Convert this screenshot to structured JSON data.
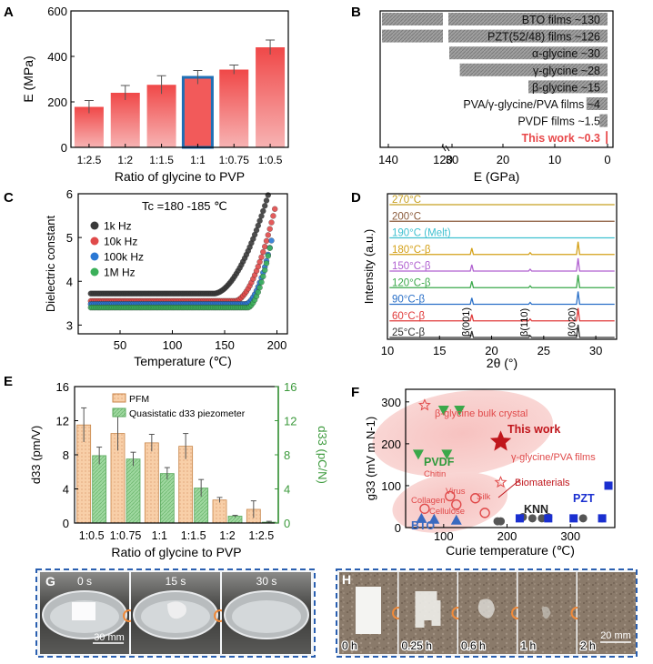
{
  "colors": {
    "bar_red": "#f25a5a",
    "bar_red_light": "#f7a8a8",
    "highlight_blue": "#1f6fb5",
    "gray_bar": "#9b9b9b",
    "this_work_red": "#e8484a",
    "pfm_fill": "#f6c9a6",
    "quasi_fill": "#9fd6a0",
    "axis_green": "#3c9a3c",
    "frame_blue": "#1f4e9a"
  },
  "chart_data": [
    {
      "panel": "A",
      "type": "bar",
      "categories": [
        "1:2.5",
        "1:2",
        "1:1.5",
        "1:1",
        "1:0.75",
        "1:0.5"
      ],
      "values": [
        178,
        240,
        275,
        308,
        342,
        440
      ],
      "errors": [
        28,
        32,
        40,
        30,
        20,
        32
      ],
      "highlight_index": 3,
      "xlabel": "Ratio of glycine to PVP",
      "ylabel": "E (MPa)",
      "ylim": [
        0,
        600
      ],
      "yticks": [
        0,
        200,
        400,
        600
      ]
    },
    {
      "panel": "B",
      "type": "bar",
      "orientation": "horizontal-reversed",
      "labels": [
        "BTO films ~130",
        "PZT(52/48) films ~126",
        "α-glycine ~30",
        "γ-glycine ~28",
        "β-glycine ~15",
        "PVA/γ-glycine/PVA films ~4",
        "PVDF films ~1.5",
        "This work ~0.3"
      ],
      "values": [
        130,
        126,
        30,
        28,
        15,
        4,
        1.5,
        0.3
      ],
      "xlabel": "E (GPa)",
      "xlim": [
        140,
        0
      ],
      "xticks": [
        "140",
        "120",
        "30",
        "20",
        "10",
        "0"
      ],
      "axis_break": "between 120 and 30"
    },
    {
      "panel": "C",
      "type": "scatter",
      "annotation": "Tc =180 -185 ℃",
      "xlabel": "Temperature (℃)",
      "ylabel": "Dielectric constant",
      "xlim": [
        10,
        210
      ],
      "ylim": [
        2.8,
        6.0
      ],
      "xticks": [
        50,
        100,
        150,
        200
      ],
      "yticks": [
        3,
        4,
        5,
        6
      ],
      "series": [
        {
          "name": "1k Hz",
          "color": "#3a3a3a",
          "base": 3.72,
          "knee": 140,
          "end_x": 192,
          "end_y": 6.0
        },
        {
          "name": "10k Hz",
          "color": "#e04a4a",
          "base": 3.55,
          "knee": 160,
          "end_x": 198,
          "end_y": 5.65
        },
        {
          "name": "100k Hz",
          "color": "#2b78d4",
          "base": 3.48,
          "knee": 170,
          "end_x": 195,
          "end_y": 4.95
        },
        {
          "name": "1M Hz",
          "color": "#3bb05a",
          "base": 3.4,
          "knee": 172,
          "end_x": 194,
          "end_y": 4.85
        }
      ]
    },
    {
      "panel": "D",
      "type": "line",
      "xlabel": "2θ (°)",
      "ylabel": "Intensity (a.u.)",
      "xlim": [
        10,
        32
      ],
      "xticks": [
        10,
        15,
        20,
        25,
        30
      ],
      "peak_labels": [
        {
          "text": "β(001)",
          "x": 18.1
        },
        {
          "text": "β(110)",
          "x": 23.7
        },
        {
          "text": "β(020)",
          "x": 28.3
        }
      ],
      "series": [
        {
          "name": "270°C",
          "color": "#c8a020",
          "peaks": false
        },
        {
          "name": "200°C",
          "color": "#8a5a3a",
          "peaks": false
        },
        {
          "name": "190°C (Melt)",
          "color": "#3ec0d0",
          "peaks": false
        },
        {
          "name": "180°C-β",
          "color": "#d4a017",
          "peaks": true
        },
        {
          "name": "150°C-β",
          "color": "#b060d0",
          "peaks": true
        },
        {
          "name": "120°C-β",
          "color": "#3aa84a",
          "peaks": true
        },
        {
          "name": "90°C-β",
          "color": "#2a70c8",
          "peaks": true
        },
        {
          "name": "60°C-β",
          "color": "#e03a3a",
          "peaks": true
        },
        {
          "name": "25°C-β",
          "color": "#333333",
          "peaks": true
        }
      ]
    },
    {
      "panel": "E",
      "type": "bar",
      "categories": [
        "1:0.5",
        "1:0.75",
        "1:1",
        "1:1.5",
        "1:2",
        "1:2.5"
      ],
      "series": [
        {
          "name": "PFM",
          "axis": "left",
          "values": [
            11.5,
            10.5,
            9.4,
            9.0,
            2.7,
            1.6
          ],
          "errors": [
            2.0,
            2.0,
            1.0,
            1.5,
            0.3,
            1.0
          ]
        },
        {
          "name": "Quasistatic d33 piezometer",
          "axis": "right",
          "values": [
            7.9,
            7.5,
            5.8,
            4.1,
            0.8,
            0.1
          ],
          "errors": [
            1.0,
            0.8,
            0.7,
            1.0,
            0.1,
            0.1
          ]
        }
      ],
      "xlabel": "Ratio of glycine to PVP",
      "ylabel_left": "d33 (pm/V)",
      "ylabel_right": "d33 (pC/N)",
      "ylim": [
        0,
        16
      ],
      "yticks": [
        0,
        4,
        8,
        12,
        16
      ]
    },
    {
      "panel": "F",
      "type": "scatter",
      "xlabel": "Curie temperature (℃)",
      "ylabel": "g33 (mV m N-1)",
      "xlim": [
        40,
        370
      ],
      "ylim": [
        0,
        330
      ],
      "xticks": [
        100,
        200,
        300
      ],
      "yticks": [
        0,
        100,
        200,
        300
      ],
      "groups": [
        {
          "name": "β-glycine bulk crystal",
          "marker": "star-open",
          "color": "#e04a4a",
          "points": [
            [
              70,
              292
            ],
            [
              190,
              108
            ]
          ]
        },
        {
          "name": "PVDF",
          "marker": "triangle-down",
          "color": "#3aa84a",
          "points": [
            [
              100,
              280
            ],
            [
              125,
              280
            ],
            [
              60,
              175
            ],
            [
              105,
              175
            ]
          ]
        },
        {
          "name": "This work",
          "marker": "star",
          "color": "#c0161c",
          "points": [
            [
              190,
              205
            ]
          ]
        },
        {
          "name": "Biomaterials",
          "marker": "circle-open",
          "color": "#e04a4a",
          "points": [
            [
              70,
              45
            ],
            [
              110,
              75
            ],
            [
              120,
              55
            ],
            [
              150,
              70
            ],
            [
              165,
              35
            ]
          ]
        },
        {
          "name": "BTO",
          "marker": "triangle-up",
          "color": "#3a6ac0",
          "points": [
            [
              65,
              22
            ],
            [
              85,
              20
            ],
            [
              120,
              18
            ]
          ]
        },
        {
          "name": "KNN",
          "marker": "circle",
          "color": "#555555",
          "points": [
            [
              185,
              15
            ],
            [
              190,
              15
            ],
            [
              225,
              25
            ],
            [
              240,
              22
            ],
            [
              255,
              22
            ],
            [
              265,
              25
            ],
            [
              320,
              22
            ],
            [
              350,
              22
            ]
          ]
        },
        {
          "name": "PZT",
          "marker": "square",
          "color": "#1a2fd0",
          "points": [
            [
              220,
              22
            ],
            [
              265,
              22
            ],
            [
              305,
              22
            ],
            [
              350,
              22
            ],
            [
              360,
              100
            ]
          ]
        }
      ],
      "region_labels": [
        "β-glycine bulk crystal",
        "This work",
        "γ-glycine/PVA films",
        "PVDF",
        "Chitin",
        "Virus",
        "Collagen",
        "Cellulose",
        "Silk",
        "Biomaterials",
        "BTO",
        "KNN",
        "PZT"
      ]
    }
  ],
  "panels": {
    "A": {
      "letter": "A"
    },
    "B": {
      "letter": "B"
    },
    "C": {
      "letter": "C"
    },
    "D": {
      "letter": "D"
    },
    "E": {
      "letter": "E"
    },
    "F": {
      "letter": "F"
    },
    "G": {
      "letter": "G",
      "times": [
        "0 s",
        "15 s",
        "30 s"
      ],
      "scale": "30 mm"
    },
    "H": {
      "letter": "H",
      "times": [
        "0 h",
        "0.25 h",
        "0.6 h",
        "1 h",
        "2 h"
      ],
      "scale": "20 mm"
    }
  }
}
